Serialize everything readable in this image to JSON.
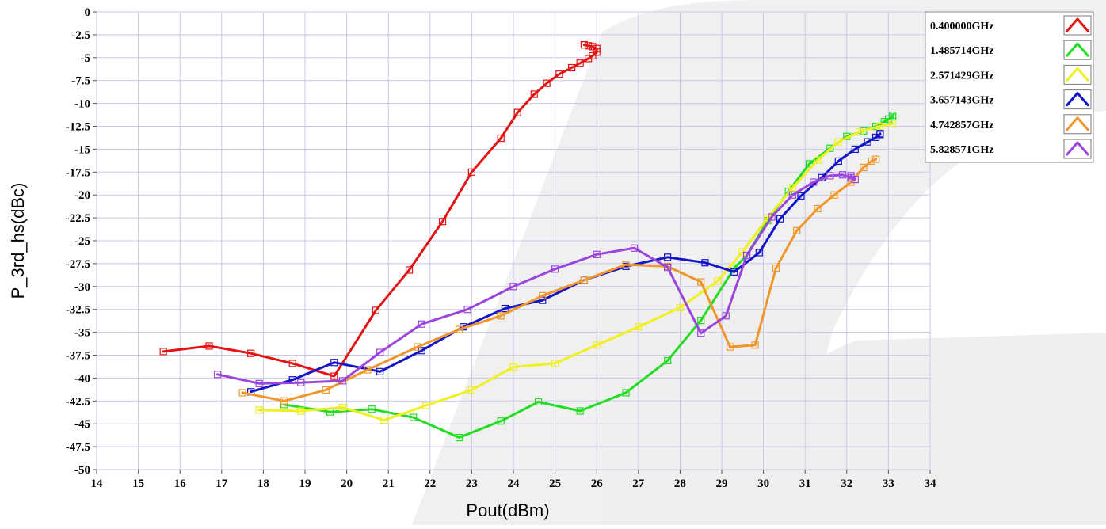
{
  "chart_data": {
    "type": "line",
    "xlabel": "Pout(dBm)",
    "ylabel": "P_3rd_hs(dBc)",
    "xlim": [
      14,
      34
    ],
    "ylim": [
      -50,
      0
    ],
    "xticks": [
      "14",
      "15",
      "16",
      "17",
      "18",
      "19",
      "20",
      "21",
      "22",
      "23",
      "24",
      "25",
      "26",
      "27",
      "28",
      "29",
      "30",
      "31",
      "32",
      "33",
      "34"
    ],
    "yticks": [
      "0",
      "-2.5",
      "-5",
      "-7.5",
      "-10",
      "-12.5",
      "-15",
      "-17.5",
      "-20",
      "-22.5",
      "-25",
      "-27.5",
      "-30",
      "-32.5",
      "-35",
      "-37.5",
      "-40",
      "-42.5",
      "-45",
      "-47.5",
      "-50"
    ],
    "grid": true,
    "legend_position": "top-right",
    "series": [
      {
        "name": "0.400000GHz",
        "color": "#e41414",
        "x": [
          15.6,
          16.7,
          17.7,
          18.7,
          19.7,
          20.7,
          21.5,
          22.3,
          23.0,
          23.7,
          24.1,
          24.5,
          24.8,
          25.1,
          25.4,
          25.6,
          25.8,
          25.9,
          26.0,
          26.0,
          25.9,
          25.8,
          25.7
        ],
        "y": [
          -37.1,
          -36.5,
          -37.3,
          -38.4,
          -39.8,
          -32.6,
          -28.2,
          -22.9,
          -17.5,
          -13.8,
          -11.0,
          -9.0,
          -7.8,
          -6.8,
          -6.1,
          -5.6,
          -5.1,
          -4.8,
          -4.4,
          -4.0,
          -3.8,
          -3.7,
          -3.6
        ]
      },
      {
        "name": "1.485714GHz",
        "color": "#22dd22",
        "x": [
          18.5,
          19.6,
          20.6,
          21.6,
          22.7,
          23.7,
          24.6,
          25.6,
          26.7,
          27.7,
          28.5,
          29.3,
          29.6,
          30.1,
          30.6,
          31.1,
          31.6,
          32.0,
          32.4,
          32.7,
          32.9,
          33.0,
          33.1,
          33.1
        ],
        "y": [
          -42.9,
          -43.7,
          -43.4,
          -44.3,
          -46.5,
          -44.7,
          -42.6,
          -43.6,
          -41.6,
          -38.1,
          -33.7,
          -28.0,
          -26.6,
          -22.8,
          -19.6,
          -16.6,
          -14.9,
          -13.6,
          -13.0,
          -12.5,
          -12.0,
          -11.7,
          -11.5,
          -11.3
        ]
      },
      {
        "name": "2.571429GHz",
        "color": "#f0f020",
        "x": [
          17.9,
          18.9,
          19.9,
          20.9,
          21.9,
          23.0,
          24.0,
          25.0,
          26.0,
          27.0,
          28.0,
          28.9,
          29.5,
          30.1,
          30.7,
          31.3,
          31.8,
          32.3,
          32.8,
          33.1
        ],
        "y": [
          -43.5,
          -43.6,
          -43.2,
          -44.6,
          -43.0,
          -41.3,
          -38.8,
          -38.4,
          -36.4,
          -34.4,
          -32.3,
          -29.4,
          -26.2,
          -22.5,
          -19.2,
          -16.2,
          -14.2,
          -13.1,
          -12.5,
          -12.2
        ]
      },
      {
        "name": "3.657143GHz",
        "color": "#1414c8",
        "x": [
          17.7,
          18.7,
          19.7,
          20.8,
          21.8,
          22.8,
          23.8,
          24.7,
          25.7,
          26.7,
          27.7,
          28.6,
          29.3,
          29.9,
          30.4,
          30.9,
          31.4,
          31.8,
          32.2,
          32.5,
          32.7,
          32.8,
          32.8
        ],
        "y": [
          -41.5,
          -40.2,
          -38.3,
          -39.3,
          -37.0,
          -34.4,
          -32.4,
          -31.5,
          -29.3,
          -27.8,
          -26.8,
          -27.4,
          -28.4,
          -26.3,
          -22.6,
          -20.1,
          -18.1,
          -16.3,
          -15.0,
          -14.2,
          -13.7,
          -13.4,
          -13.3
        ]
      },
      {
        "name": "4.742857GHz",
        "color": "#f0962a",
        "x": [
          17.5,
          18.5,
          19.5,
          20.5,
          21.7,
          22.7,
          23.7,
          24.7,
          25.7,
          26.7,
          27.7,
          28.5,
          29.2,
          29.8,
          30.3,
          30.8,
          31.3,
          31.7,
          32.1,
          32.4,
          32.6,
          32.7
        ],
        "y": [
          -41.6,
          -42.5,
          -41.3,
          -39.1,
          -36.6,
          -34.7,
          -33.2,
          -31.0,
          -29.3,
          -27.6,
          -27.8,
          -29.5,
          -36.6,
          -36.4,
          -28.0,
          -23.9,
          -21.5,
          -20.0,
          -18.6,
          -17.0,
          -16.3,
          -16.1
        ]
      },
      {
        "name": "5.828571GHz",
        "color": "#9b45dc",
        "x": [
          16.9,
          17.9,
          18.9,
          19.9,
          20.8,
          21.8,
          22.9,
          24.0,
          25.0,
          26.0,
          26.9,
          27.7,
          28.5,
          29.1,
          29.6,
          30.2,
          30.7,
          31.2,
          31.6,
          31.9,
          32.1,
          32.2,
          32.1
        ],
        "y": [
          -39.6,
          -40.6,
          -40.5,
          -40.3,
          -37.2,
          -34.1,
          -32.5,
          -30.0,
          -28.1,
          -26.5,
          -25.8,
          -27.9,
          -35.1,
          -33.2,
          -26.6,
          -22.4,
          -20.0,
          -18.6,
          -17.9,
          -17.8,
          -18.1,
          -18.3,
          -17.9
        ]
      }
    ]
  }
}
